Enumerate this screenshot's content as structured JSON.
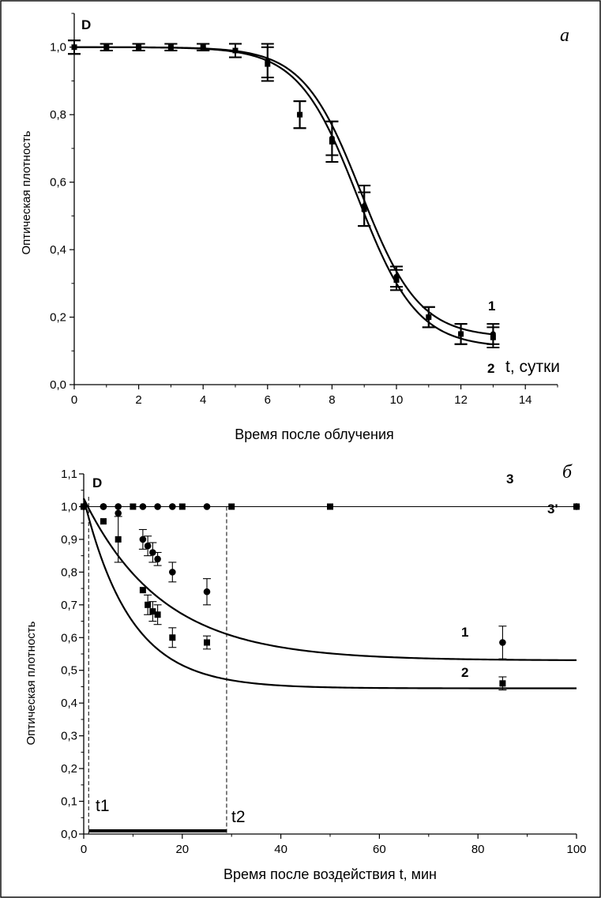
{
  "chart_data": [
    {
      "type": "scatter",
      "panel_label": "а",
      "y_axis_symbol": "D",
      "ylabel": "Оптическая плотность",
      "xlabel": "Время после облучения",
      "x_unit_label": "t, сутки",
      "xlim": [
        0,
        15
      ],
      "ylim": [
        0,
        1.1
      ],
      "x_ticks": [
        0,
        2,
        4,
        6,
        8,
        10,
        12,
        14
      ],
      "y_ticks": [
        0,
        0.2,
        0.4,
        0.6,
        0.8,
        1.0
      ],
      "x_tick_labels": [
        "0",
        "2",
        "4",
        "6",
        "8",
        "10",
        "12",
        "14"
      ],
      "y_tick_labels": [
        "0,0",
        "0,2",
        "0,4",
        "0,6",
        "0,8",
        "1,0"
      ],
      "grid": false,
      "series": [
        {
          "name": "1",
          "marker": "circle",
          "x": [
            0,
            1,
            2,
            3,
            4,
            5,
            6,
            7,
            8,
            9,
            10,
            11,
            12,
            13
          ],
          "y": [
            1.0,
            1.0,
            1.0,
            1.0,
            1.0,
            0.99,
            0.96,
            0.8,
            0.73,
            0.53,
            0.32,
            0.2,
            0.15,
            0.15
          ],
          "err": [
            0.02,
            0.01,
            0.01,
            0.01,
            0.01,
            0.02,
            0.05,
            0.04,
            0.05,
            0.06,
            0.03,
            0.03,
            0.03,
            0.03
          ],
          "fit": {
            "top": 1.0,
            "bottom": 0.14,
            "x0": 8.9,
            "dx": 0.9
          }
        },
        {
          "name": "2",
          "marker": "square",
          "x": [
            0,
            1,
            2,
            3,
            4,
            5,
            6,
            7,
            8,
            9,
            10,
            11,
            12,
            13
          ],
          "y": [
            1.0,
            1.0,
            1.0,
            1.0,
            1.0,
            0.99,
            0.95,
            0.8,
            0.72,
            0.52,
            0.31,
            0.2,
            0.15,
            0.14
          ],
          "err": [
            0.02,
            0.01,
            0.01,
            0.01,
            0.01,
            0.02,
            0.05,
            0.04,
            0.06,
            0.05,
            0.03,
            0.03,
            0.03,
            0.03
          ],
          "fit": {
            "top": 1.0,
            "bottom": 0.11,
            "x0": 8.8,
            "dx": 0.92
          }
        }
      ]
    },
    {
      "type": "scatter",
      "panel_label": "б",
      "y_axis_symbol": "D",
      "ylabel": "Оптическая плотность",
      "xlabel": "Время после воздействия t, мин",
      "xlim": [
        0,
        100
      ],
      "ylim": [
        0,
        1.1
      ],
      "x_ticks": [
        0,
        20,
        40,
        60,
        80,
        100
      ],
      "y_ticks": [
        0,
        0.1,
        0.2,
        0.3,
        0.4,
        0.5,
        0.6,
        0.7,
        0.8,
        0.9,
        1.0,
        1.1
      ],
      "x_tick_labels": [
        "0",
        "20",
        "40",
        "60",
        "80",
        "100"
      ],
      "y_tick_labels": [
        "0,0",
        "0,1",
        "0,2",
        "0,3",
        "0,4",
        "0,5",
        "0,6",
        "0,7",
        "0,8",
        "0,9",
        "1,0",
        "1,1"
      ],
      "grid": false,
      "markers_t": {
        "t1_label": "t1",
        "t1": 1,
        "t2_label": "t2",
        "t2": 29
      },
      "series": [
        {
          "name": "1",
          "marker": "circle",
          "x": [
            0,
            4,
            7,
            12,
            13,
            14,
            15,
            18,
            25,
            85
          ],
          "y": [
            1.0,
            1.0,
            0.98,
            0.9,
            0.88,
            0.86,
            0.84,
            0.8,
            0.74,
            0.585
          ],
          "err": [
            0.0,
            0.0,
            0.0,
            0.03,
            0.03,
            0.03,
            0.02,
            0.03,
            0.04,
            0.05
          ],
          "fit": {
            "bottom": 0.53,
            "top": 1.025,
            "tau": 16
          }
        },
        {
          "name": "2",
          "marker": "square",
          "x": [
            0,
            4,
            7,
            12,
            13,
            14,
            15,
            18,
            25,
            85
          ],
          "y": [
            1.0,
            0.955,
            0.9,
            0.745,
            0.7,
            0.68,
            0.67,
            0.6,
            0.585,
            0.46
          ],
          "err": [
            0.0,
            0.0,
            0.07,
            0.0,
            0.03,
            0.03,
            0.03,
            0.03,
            0.02,
            0.02
          ],
          "fit": {
            "bottom": 0.445,
            "top": 1.025,
            "tau": 9.5
          }
        },
        {
          "name": "3",
          "marker": "circle",
          "x": [
            0,
            4,
            7,
            12,
            15,
            18,
            25,
            100
          ],
          "y": [
            1.0,
            1.0,
            1.0,
            1.0,
            1.0,
            1.0,
            1.0,
            1.0
          ]
        },
        {
          "name": "3'",
          "marker": "square",
          "x": [
            0,
            10,
            20,
            30,
            50,
            100
          ],
          "y": [
            1.0,
            1.0,
            1.0,
            1.0,
            1.0,
            1.0
          ]
        }
      ]
    }
  ]
}
